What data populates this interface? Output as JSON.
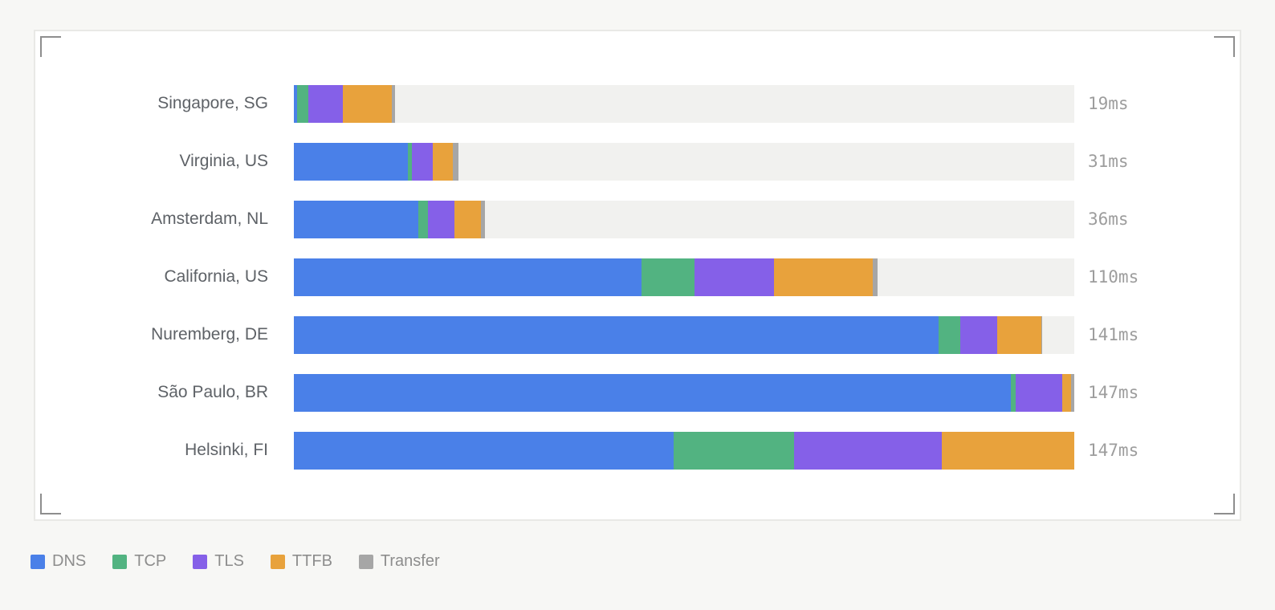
{
  "page": {
    "background": "#f7f7f5"
  },
  "card": {
    "background": "#ffffff",
    "border_color": "#e9e9e6",
    "bracket_color": "#8e8e8e"
  },
  "chart_data": {
    "type": "bar",
    "orientation": "horizontal-stacked",
    "title": "",
    "xlabel": "",
    "ylabel": "",
    "xlim": [
      0,
      147
    ],
    "grid": false,
    "track_color": "#f1f1ef",
    "legend_position": "bottom-left",
    "categories": [
      "Singapore, SG",
      "Virginia, US",
      "Amsterdam, NL",
      "California, US",
      "Nuremberg, DE",
      "São Paulo, BR",
      "Helsinki, FI"
    ],
    "series": [
      {
        "name": "DNS",
        "color": "#4a80e8",
        "values": [
          0.6,
          21.4,
          23.5,
          65.5,
          121.4,
          135.0,
          71.5
        ]
      },
      {
        "name": "TCP",
        "color": "#52b381",
        "values": [
          2.1,
          0.8,
          1.8,
          10.0,
          4.1,
          0.9,
          22.7
        ]
      },
      {
        "name": "TLS",
        "color": "#8560e8",
        "values": [
          6.5,
          3.9,
          5.0,
          15.0,
          7.0,
          8.9,
          27.9
        ]
      },
      {
        "name": "TTFB",
        "color": "#e8a23c",
        "values": [
          9.3,
          3.9,
          5.0,
          18.6,
          8.3,
          1.6,
          24.9
        ]
      },
      {
        "name": "Transfer",
        "color": "#a6a6a6",
        "values": [
          0.5,
          1.0,
          0.7,
          0.9,
          0.2,
          0.6,
          0.0
        ]
      }
    ],
    "totals_ms": [
      19,
      31,
      36,
      110,
      141,
      147,
      147
    ],
    "total_labels": [
      "19ms",
      "31ms",
      "36ms",
      "110ms",
      "141ms",
      "147ms",
      "147ms"
    ]
  },
  "legend": {
    "items": [
      "DNS",
      "TCP",
      "TLS",
      "TTFB",
      "Transfer"
    ]
  },
  "text_colors": {
    "row_label": "#5e6267",
    "value_label": "#9d9d9d",
    "legend_label": "#8d8d8d"
  }
}
